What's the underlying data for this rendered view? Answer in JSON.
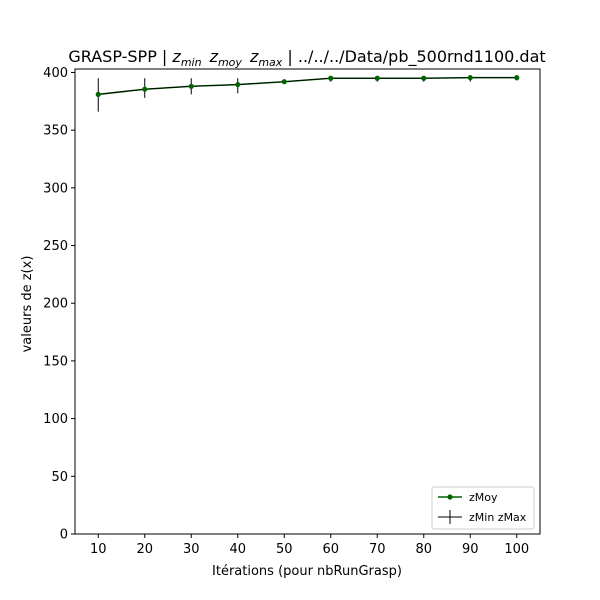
{
  "chart_data": {
    "type": "line",
    "title": {
      "prefix": "GRASP-SPP | ",
      "zmin_base": "z",
      "zmin_sub": "min",
      "zmoy_base": "z",
      "zmoy_sub": "moy",
      "zmax_base": "z",
      "zmax_sub": "max",
      "suffix": " | ../../../Data/pb_500rnd1100.dat"
    },
    "xlabel": "Itérations (pour nbRunGrasp)",
    "ylabel": "valeurs de z(x)",
    "x": [
      10,
      20,
      30,
      40,
      50,
      60,
      70,
      80,
      90,
      100
    ],
    "series": [
      {
        "name": "zMoy",
        "color": "#006400",
        "marker": "circle",
        "values": [
          381,
          385.5,
          388,
          389.5,
          392,
          395,
          395,
          395,
          395.5,
          395.5
        ]
      }
    ],
    "errorbars": {
      "name": "zMin zMax",
      "color": "#000000",
      "zmin": [
        366,
        378,
        381,
        382,
        390,
        392,
        392,
        392,
        392,
        393
      ],
      "zmax": [
        395,
        395,
        395,
        395,
        394,
        396,
        397,
        397,
        397,
        397
      ]
    },
    "xlim": [
      5,
      105
    ],
    "ylim": [
      0,
      403
    ],
    "xticks": [
      10,
      20,
      30,
      40,
      50,
      60,
      70,
      80,
      90,
      100
    ],
    "yticks": [
      0,
      50,
      100,
      150,
      200,
      250,
      300,
      350,
      400
    ],
    "grid": false,
    "legend_position": "lower-right",
    "colors": {
      "series_line": "#006400",
      "series_marker": "#006400",
      "errorbar": "#000000",
      "axes": "#000000"
    }
  }
}
